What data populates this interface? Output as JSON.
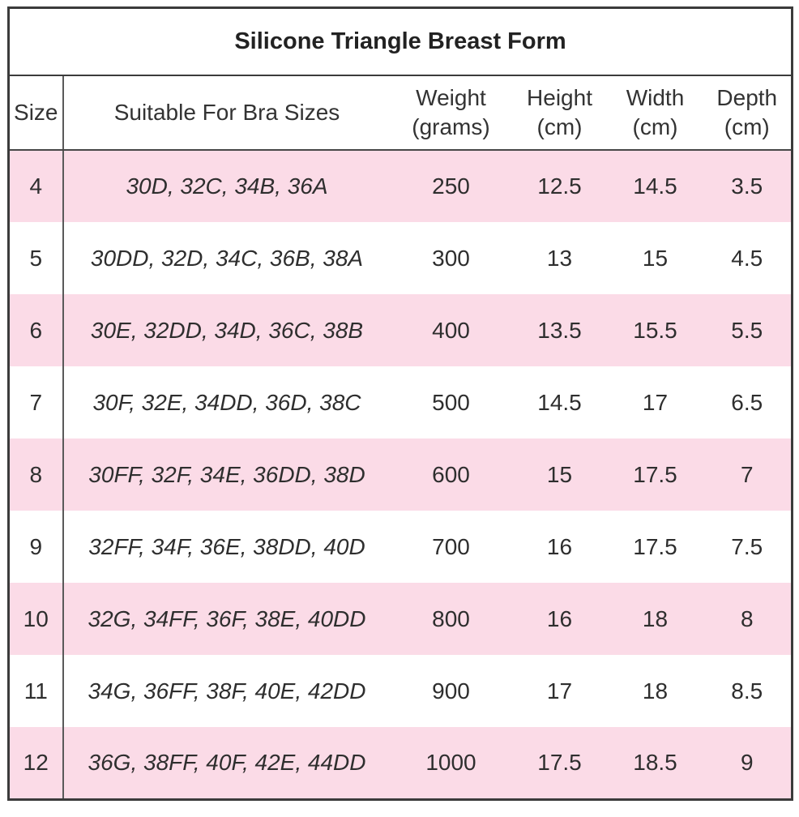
{
  "chart_data": {
    "type": "table",
    "title": "Silicone Triangle Breast Form",
    "columns": [
      "Size",
      "Suitable For Bra Sizes",
      "Weight (grams)",
      "Height (cm)",
      "Width (cm)",
      "Depth (cm)"
    ],
    "header_lines": {
      "size": [
        "Size"
      ],
      "bra": [
        "Suitable For Bra Sizes"
      ],
      "weight": [
        "Weight",
        "(grams)"
      ],
      "height": [
        "Height",
        "(cm)"
      ],
      "width": [
        "Width",
        "(cm)"
      ],
      "depth": [
        "Depth",
        "(cm)"
      ]
    },
    "rows": [
      {
        "size": "4",
        "bra_sizes": "30D, 32C, 34B, 36A",
        "weight_g": "250",
        "height_cm": "12.5",
        "width_cm": "14.5",
        "depth_cm": "3.5"
      },
      {
        "size": "5",
        "bra_sizes": "30DD, 32D, 34C, 36B, 38A",
        "weight_g": "300",
        "height_cm": "13",
        "width_cm": "15",
        "depth_cm": "4.5"
      },
      {
        "size": "6",
        "bra_sizes": "30E, 32DD, 34D, 36C, 38B",
        "weight_g": "400",
        "height_cm": "13.5",
        "width_cm": "15.5",
        "depth_cm": "5.5"
      },
      {
        "size": "7",
        "bra_sizes": "30F, 32E, 34DD, 36D, 38C",
        "weight_g": "500",
        "height_cm": "14.5",
        "width_cm": "17",
        "depth_cm": "6.5"
      },
      {
        "size": "8",
        "bra_sizes": "30FF, 32F, 34E, 36DD, 38D",
        "weight_g": "600",
        "height_cm": "15",
        "width_cm": "17.5",
        "depth_cm": "7"
      },
      {
        "size": "9",
        "bra_sizes": "32FF, 34F, 36E, 38DD, 40D",
        "weight_g": "700",
        "height_cm": "16",
        "width_cm": "17.5",
        "depth_cm": "7.5"
      },
      {
        "size": "10",
        "bra_sizes": "32G, 34FF, 36F, 38E, 40DD",
        "weight_g": "800",
        "height_cm": "16",
        "width_cm": "18",
        "depth_cm": "8"
      },
      {
        "size": "11",
        "bra_sizes": "34G, 36FF, 38F, 40E, 42DD",
        "weight_g": "900",
        "height_cm": "17",
        "width_cm": "18",
        "depth_cm": "8.5"
      },
      {
        "size": "12",
        "bra_sizes": "36G, 38FF, 40F, 42E, 44DD",
        "weight_g": "1000",
        "height_cm": "17.5",
        "width_cm": "18.5",
        "depth_cm": "9"
      }
    ],
    "layout": {
      "row_striping": "alternating pink/white starting pink",
      "grid": "outer border, line under title, line under header, vertical divider after Size column only"
    },
    "colors": {
      "row_pink": "#FBDBE7",
      "row_white": "#FFFFFF",
      "border_outer": "#3B3B3B",
      "border_inner": "#5A5A5A",
      "text": "#2E2E2E"
    }
  }
}
